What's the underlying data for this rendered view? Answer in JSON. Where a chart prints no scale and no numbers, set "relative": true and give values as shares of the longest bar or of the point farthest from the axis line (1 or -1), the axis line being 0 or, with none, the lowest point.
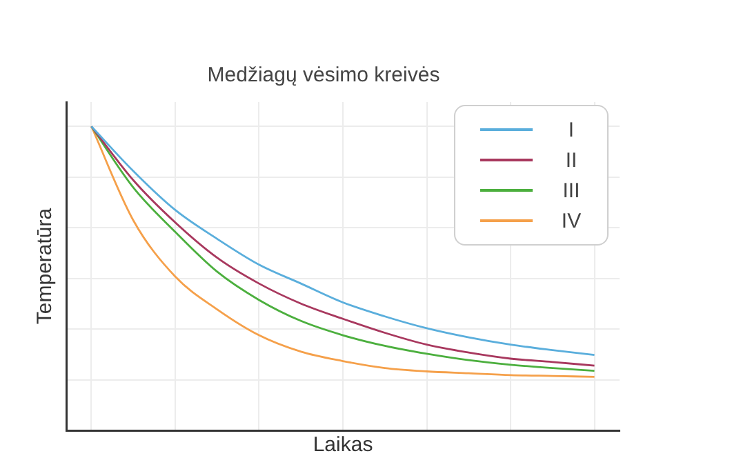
{
  "chart_data": {
    "type": "line",
    "title": "Medžiagų vėsimo kreivės",
    "xlabel": "Laikas",
    "ylabel": "Temperatūra",
    "relative": true,
    "grid": true,
    "legend": "top right",
    "marker": "none",
    "line_style": "solid",
    "categories": [
      null,
      null,
      null,
      null,
      null,
      null,
      null,
      null,
      null,
      null,
      null,
      null,
      null
    ],
    "series": [
      {
        "name": "I",
        "color": "#5aaedc",
        "values": [
          1,
          0.853,
          0.725,
          0.63,
          0.545,
          0.483,
          0.421,
          0.375,
          0.336,
          0.306,
          0.282,
          0.264,
          0.248
        ]
      },
      {
        "name": "II",
        "color": "#a8385e",
        "values": [
          1,
          0.823,
          0.684,
          0.568,
          0.483,
          0.417,
          0.367,
          0.321,
          0.282,
          0.256,
          0.236,
          0.225,
          0.213
        ]
      },
      {
        "name": "III",
        "color": "#4caf3e",
        "values": [
          1,
          0.799,
          0.653,
          0.522,
          0.429,
          0.36,
          0.313,
          0.278,
          0.252,
          0.231,
          0.216,
          0.205,
          0.196
        ]
      },
      {
        "name": "IV",
        "color": "#f5a04a",
        "values": [
          1,
          0.691,
          0.506,
          0.398,
          0.313,
          0.259,
          0.228,
          0.205,
          0.194,
          0.188,
          0.182,
          0.179,
          0.176
        ]
      }
    ]
  }
}
